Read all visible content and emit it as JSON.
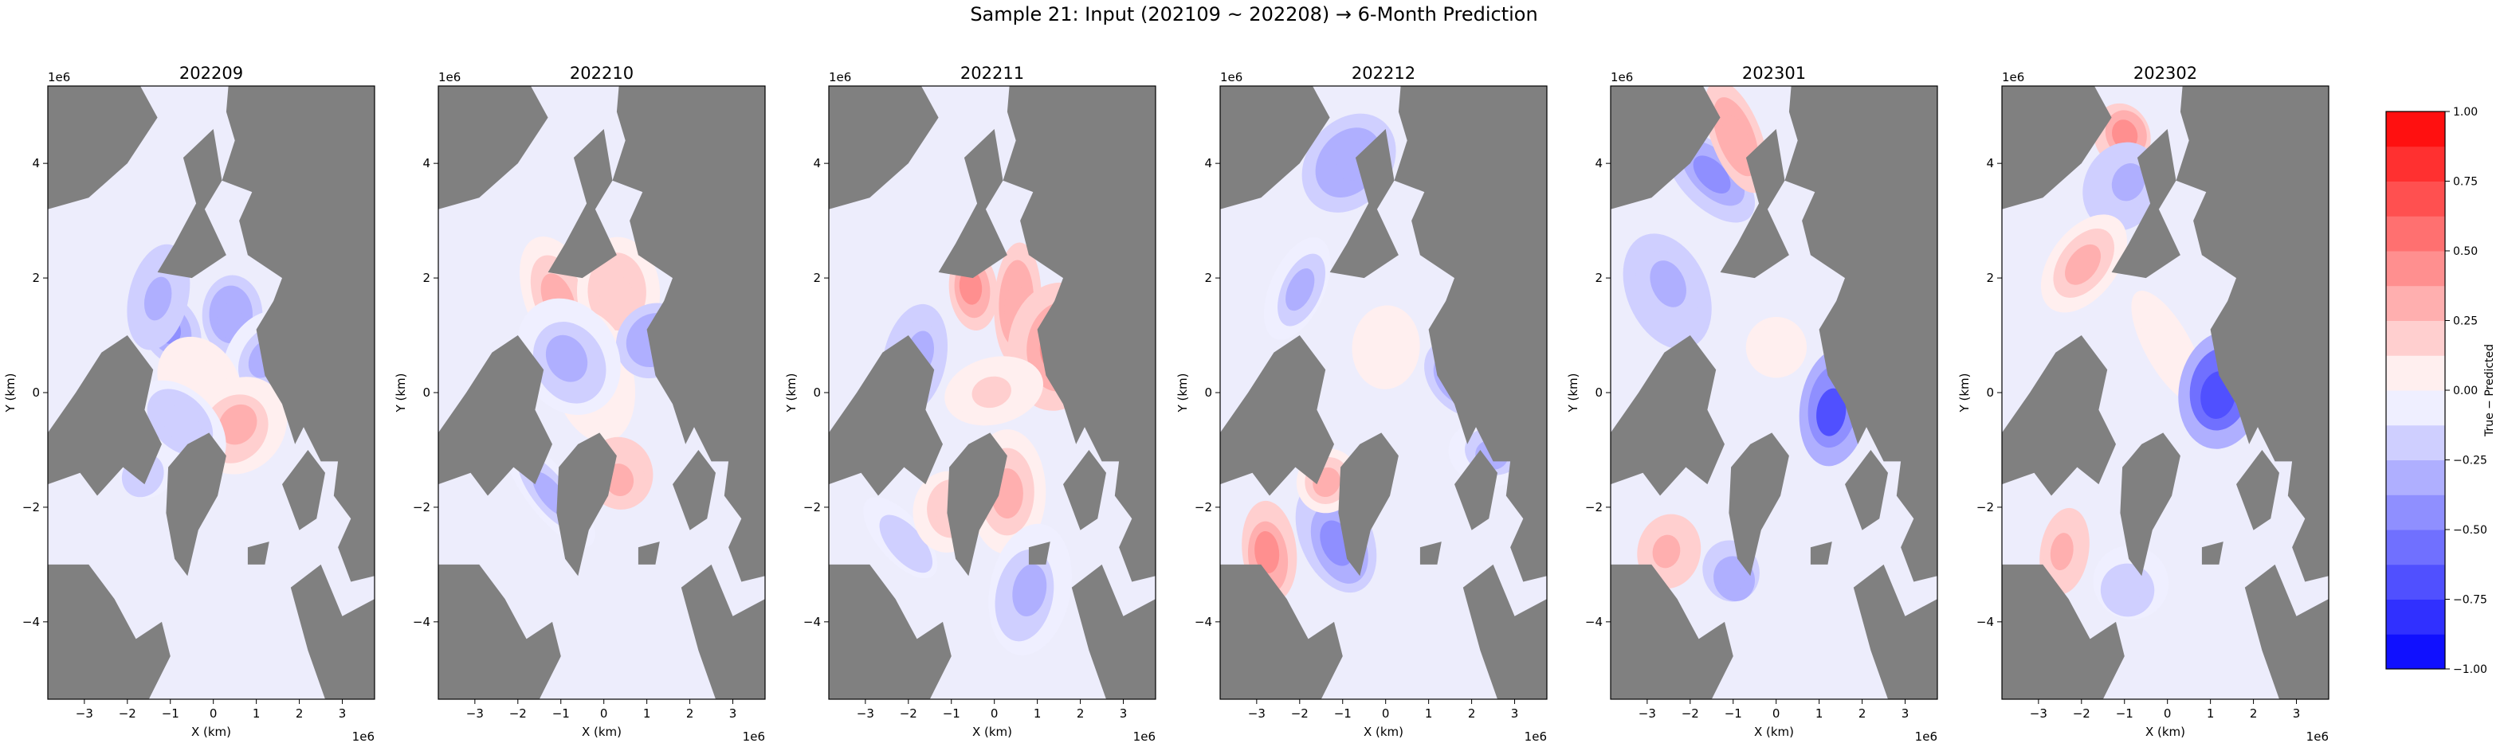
{
  "figure": {
    "title": "Sample 21: Input (202109 ~ 202208) → 6-Month Prediction"
  },
  "colors": {
    "land": "#808080",
    "background_zero": "#ededfc",
    "negative": "#0000ff",
    "positive": "#ff0000",
    "spine": "#000000"
  },
  "chart_data": [
    {
      "type": "heatmap",
      "title": "202209",
      "xlabel": "X (km)",
      "ylabel": "Y (km)",
      "x_scale_label": "1e6",
      "y_scale_label": "1e6",
      "xlim": [
        -3850000.0,
        3750000.0
      ],
      "ylim": [
        -5350000.0,
        5350000.0
      ],
      "xticks": [
        -3,
        -2,
        -1,
        0,
        1,
        2,
        3
      ],
      "yticks": [
        -4,
        -2,
        0,
        2,
        4
      ],
      "value_range": [
        -1.0,
        1.0
      ],
      "colormap": "bwr",
      "regions": [
        {
          "x": -1.0,
          "y": 1.1,
          "value": -0.45
        },
        {
          "x": 0.4,
          "y": 1.3,
          "value": -0.4
        },
        {
          "x": 1.2,
          "y": 0.6,
          "value": -0.3
        },
        {
          "x": -0.3,
          "y": 0.2,
          "value": 0.1
        },
        {
          "x": 0.6,
          "y": -0.6,
          "value": 0.3
        },
        {
          "x": -1.6,
          "y": -1.4,
          "value": -0.25
        },
        {
          "x": -1.3,
          "y": 1.6,
          "value": -0.35
        },
        {
          "x": -0.8,
          "y": -0.5,
          "value": -0.2
        }
      ]
    },
    {
      "type": "heatmap",
      "title": "202210",
      "xlabel": "X (km)",
      "ylabel": "Y (km)",
      "x_scale_label": "1e6",
      "y_scale_label": "1e6",
      "xlim": [
        -3850000.0,
        3750000.0
      ],
      "ylim": [
        -5350000.0,
        5350000.0
      ],
      "xticks": [
        -3,
        -2,
        -1,
        0,
        1,
        2,
        3
      ],
      "yticks": [
        -4,
        -2,
        0,
        2,
        4
      ],
      "value_range": [
        -1.0,
        1.0
      ],
      "colormap": "bwr",
      "regions": [
        {
          "x": -1.0,
          "y": 1.6,
          "value": 0.3
        },
        {
          "x": 0.3,
          "y": 1.7,
          "value": 0.25
        },
        {
          "x": -0.2,
          "y": 0.3,
          "value": 0.15
        },
        {
          "x": 1.2,
          "y": 0.9,
          "value": -0.4
        },
        {
          "x": -0.8,
          "y": 0.6,
          "value": -0.3
        },
        {
          "x": 0.4,
          "y": -1.5,
          "value": 0.35
        },
        {
          "x": -1.2,
          "y": -1.8,
          "value": -0.3
        }
      ]
    },
    {
      "type": "heatmap",
      "title": "202211",
      "xlabel": "X (km)",
      "ylabel": "Y (km)",
      "x_scale_label": "1e6",
      "y_scale_label": "1e6",
      "xlim": [
        -3850000.0,
        3750000.0
      ],
      "ylim": [
        -5350000.0,
        5350000.0
      ],
      "xticks": [
        -3,
        -2,
        -1,
        0,
        1,
        2,
        3
      ],
      "yticks": [
        -4,
        -2,
        0,
        2,
        4
      ],
      "value_range": [
        -1.0,
        1.0
      ],
      "colormap": "bwr",
      "regions": [
        {
          "x": -0.5,
          "y": 1.8,
          "value": 0.55
        },
        {
          "x": 0.5,
          "y": 1.5,
          "value": 0.4
        },
        {
          "x": 1.5,
          "y": 0.8,
          "value": 0.45
        },
        {
          "x": -1.8,
          "y": 0.6,
          "value": -0.35
        },
        {
          "x": 0.0,
          "y": 0.0,
          "value": 0.15
        },
        {
          "x": -2.1,
          "y": -2.6,
          "value": -0.25
        },
        {
          "x": 0.3,
          "y": -1.8,
          "value": 0.3
        },
        {
          "x": -1.0,
          "y": -2.0,
          "value": 0.2
        },
        {
          "x": 0.8,
          "y": -3.5,
          "value": -0.3
        }
      ]
    },
    {
      "type": "heatmap",
      "title": "202212",
      "xlabel": "X (km)",
      "ylabel": "Y (km)",
      "x_scale_label": "1e6",
      "y_scale_label": "1e6",
      "xlim": [
        -3850000.0,
        3750000.0
      ],
      "ylim": [
        -5350000.0,
        5350000.0
      ],
      "xticks": [
        -3,
        -2,
        -1,
        0,
        1,
        2,
        3
      ],
      "yticks": [
        -4,
        -2,
        0,
        2,
        4
      ],
      "value_range": [
        -1.0,
        1.0
      ],
      "colormap": "bwr",
      "regions": [
        {
          "x": 0.0,
          "y": 0.8,
          "value": 0.12
        },
        {
          "x": 1.8,
          "y": 0.2,
          "value": -0.55
        },
        {
          "x": -2.0,
          "y": 1.8,
          "value": -0.3
        },
        {
          "x": -0.8,
          "y": 4.0,
          "value": -0.4
        },
        {
          "x": -2.7,
          "y": -2.8,
          "value": 0.45
        },
        {
          "x": -1.1,
          "y": -2.6,
          "value": -0.45
        },
        {
          "x": -1.4,
          "y": -1.6,
          "value": 0.3
        },
        {
          "x": 2.5,
          "y": -1.0,
          "value": -0.3
        }
      ]
    },
    {
      "type": "heatmap",
      "title": "202301",
      "xlabel": "X (km)",
      "ylabel": "Y (km)",
      "x_scale_label": "1e6",
      "y_scale_label": "1e6",
      "xlim": [
        -3850000.0,
        3750000.0
      ],
      "ylim": [
        -5350000.0,
        5350000.0
      ],
      "xticks": [
        -3,
        -2,
        -1,
        0,
        1,
        2,
        3
      ],
      "yticks": [
        -4,
        -2,
        0,
        2,
        4
      ],
      "value_range": [
        -1.0,
        1.0
      ],
      "colormap": "bwr",
      "regions": [
        {
          "x": 0.0,
          "y": 0.8,
          "value": 0.1
        },
        {
          "x": 1.3,
          "y": -0.3,
          "value": -0.75
        },
        {
          "x": -1.5,
          "y": 3.8,
          "value": -0.5
        },
        {
          "x": -2.5,
          "y": 1.8,
          "value": -0.35
        },
        {
          "x": -2.5,
          "y": -2.8,
          "value": 0.35
        },
        {
          "x": -1.0,
          "y": -3.2,
          "value": -0.4
        },
        {
          "x": -0.9,
          "y": 4.4,
          "value": 0.4
        }
      ]
    },
    {
      "type": "heatmap",
      "title": "202302",
      "xlabel": "X (km)",
      "ylabel": "Y (km)",
      "x_scale_label": "1e6",
      "y_scale_label": "1e6",
      "xlim": [
        -3850000.0,
        3750000.0
      ],
      "ylim": [
        -5350000.0,
        5350000.0
      ],
      "xticks": [
        -3,
        -2,
        -1,
        0,
        1,
        2,
        3
      ],
      "yticks": [
        -4,
        -2,
        0,
        2,
        4
      ],
      "value_range": [
        -1.0,
        1.0
      ],
      "colormap": "bwr",
      "regions": [
        {
          "x": 0.0,
          "y": 0.8,
          "value": 0.1
        },
        {
          "x": 1.2,
          "y": 0.0,
          "value": -0.8
        },
        {
          "x": -1.0,
          "y": 4.5,
          "value": 0.45
        },
        {
          "x": -1.0,
          "y": 3.6,
          "value": -0.35
        },
        {
          "x": -2.4,
          "y": -2.8,
          "value": 0.35
        },
        {
          "x": -0.9,
          "y": -3.4,
          "value": -0.25
        },
        {
          "x": -2.0,
          "y": 2.2,
          "value": 0.3
        }
      ]
    }
  ],
  "colorbar": {
    "label": "True − Predicted",
    "ticks": [
      "1.00",
      "0.75",
      "0.50",
      "0.25",
      "0.00",
      "−0.25",
      "−0.50",
      "−0.75",
      "−1.00"
    ],
    "levels": [
      -1.0,
      -0.875,
      -0.75,
      -0.625,
      -0.5,
      -0.375,
      -0.25,
      -0.125,
      0.0,
      0.125,
      0.25,
      0.375,
      0.5,
      0.625,
      0.75,
      0.875,
      1.0
    ]
  }
}
